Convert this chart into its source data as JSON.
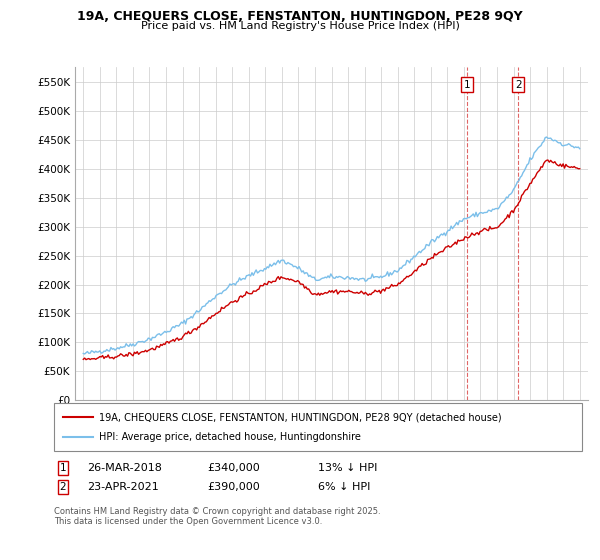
{
  "title_line1": "19A, CHEQUERS CLOSE, FENSTANTON, HUNTINGDON, PE28 9QY",
  "title_line2": "Price paid vs. HM Land Registry's House Price Index (HPI)",
  "hpi_color": "#7bbfea",
  "price_color": "#cc0000",
  "background_color": "#ffffff",
  "grid_color": "#cccccc",
  "ylim": [
    0,
    575000
  ],
  "yticks": [
    0,
    50000,
    100000,
    150000,
    200000,
    250000,
    300000,
    350000,
    400000,
    450000,
    500000,
    550000
  ],
  "ytick_labels": [
    "£0",
    "£50K",
    "£100K",
    "£150K",
    "£200K",
    "£250K",
    "£300K",
    "£350K",
    "£400K",
    "£450K",
    "£500K",
    "£550K"
  ],
  "purchase1_date": "26-MAR-2018",
  "purchase1_price": "£340,000",
  "purchase1_pct": "13% ↓ HPI",
  "purchase2_date": "23-APR-2021",
  "purchase2_price": "£390,000",
  "purchase2_pct": "6% ↓ HPI",
  "legend_label1": "19A, CHEQUERS CLOSE, FENSTANTON, HUNTINGDON, PE28 9QY (detached house)",
  "legend_label2": "HPI: Average price, detached house, Huntingdonshire",
  "footer": "Contains HM Land Registry data © Crown copyright and database right 2025.\nThis data is licensed under the Open Government Licence v3.0.",
  "hpi_base": [
    80000,
    85000,
    90000,
    97000,
    106000,
    118000,
    133000,
    155000,
    180000,
    200000,
    215000,
    228000,
    242000,
    228000,
    208000,
    213000,
    212000,
    208000,
    213000,
    224000,
    248000,
    272000,
    293000,
    313000,
    323000,
    330000,
    362000,
    415000,
    455000,
    442000,
    436000
  ],
  "price_base": [
    70000,
    73000,
    76000,
    80000,
    87000,
    97000,
    110000,
    128000,
    150000,
    170000,
    184000,
    200000,
    213000,
    205000,
    183000,
    188000,
    188000,
    184000,
    189000,
    200000,
    222000,
    245000,
    263000,
    280000,
    292000,
    298000,
    328000,
    374000,
    415000,
    405000,
    400000
  ],
  "p1_year": 2018.21,
  "p2_year": 2021.29,
  "xlim_left": 1994.5,
  "xlim_right": 2025.5
}
